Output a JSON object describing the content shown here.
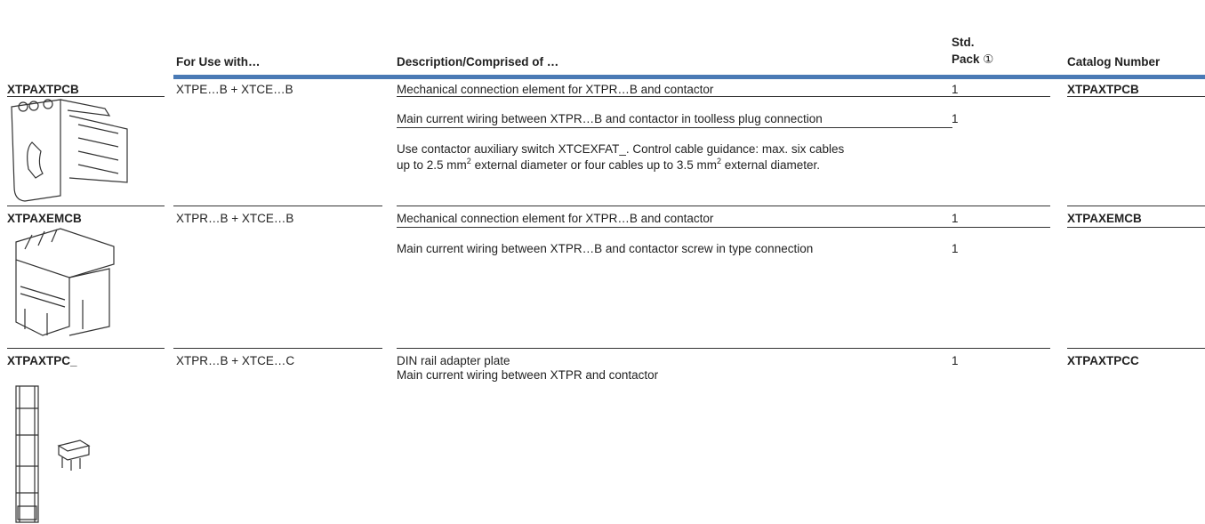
{
  "header": {
    "use": "For Use with…",
    "description": "Description/Comprised of …",
    "pack_line1": "Std.",
    "pack_line2": "Pack",
    "pack_note": "①",
    "catalog": "Catalog Number"
  },
  "rows": [
    {
      "label": "XTPAXTPCB",
      "use": "XTPE…B + XTCE…B",
      "descriptions": [
        "Mechanical connection element for XTPR…B and contactor",
        "Main current wiring between XTPR…B and contactor in toolless plug connection"
      ],
      "note": [
        "Use contactor auxiliary switch XTCEXFAT_. Control cable guidance: max. six cables",
        "up to 2.5 mm",
        "2",
        " external diameter or four cables up to 3.5 mm",
        "2",
        " external diameter."
      ],
      "packs": [
        1,
        1
      ],
      "catalog": "XTPAXTPCB"
    },
    {
      "label": "XTPAXEMCB",
      "use": "XTPR…B + XTCE…B",
      "descriptions": [
        "Mechanical connection element for XTPR…B and contactor",
        "Main current wiring between XTPR…B and contactor screw in type connection"
      ],
      "packs": [
        1,
        1
      ],
      "catalog": "XTPAXEMCB"
    },
    {
      "label": "XTPAXTPC_",
      "use": "XTPR…B + XTCE…C",
      "descriptions": [
        "DIN rail adapter plate",
        "Main current wiring between XTPR and contactor"
      ],
      "packs": [
        1
      ],
      "catalog": "XTPAXTPCC"
    }
  ]
}
